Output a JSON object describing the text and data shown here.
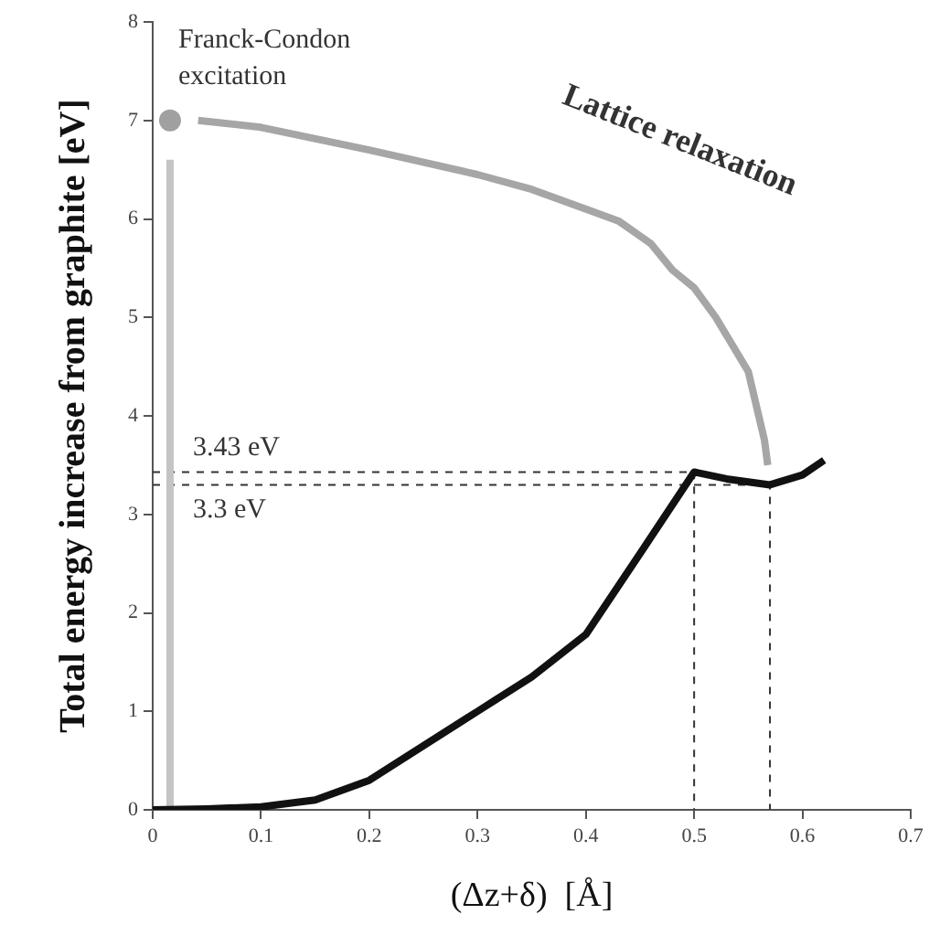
{
  "chart_data": {
    "type": "line",
    "xlabel": "(Δz+δ)  [Å]",
    "ylabel": "Total energy increase from graphite [eV]",
    "xlim": [
      0,
      0.7
    ],
    "xticks": [
      0,
      0.1,
      0.2,
      0.3,
      0.4,
      0.5,
      0.6,
      0.7
    ],
    "ylim": [
      0,
      8
    ],
    "yticks": [
      0,
      1,
      2,
      3,
      4,
      5,
      6,
      7,
      8
    ],
    "grid": false,
    "legend": false,
    "series": [
      {
        "color": "#111111",
        "line_style": "solid",
        "marker": "none",
        "x": [
          0,
          0.05,
          0.1,
          0.15,
          0.2,
          0.25,
          0.3,
          0.35,
          0.4,
          0.45,
          0.5,
          0.53,
          0.57,
          0.6,
          0.62
        ],
        "values": [
          0,
          0.01,
          0.03,
          0.1,
          0.3,
          0.65,
          1.0,
          1.35,
          1.78,
          2.6,
          3.43,
          3.36,
          3.3,
          3.4,
          3.55
        ]
      },
      {
        "color": "#a6a6a6",
        "line_style": "solid",
        "marker": "none",
        "x": [
          0.042,
          0.1,
          0.2,
          0.3,
          0.35,
          0.4,
          0.43,
          0.46,
          0.48,
          0.5,
          0.52,
          0.55,
          0.565,
          0.568
        ],
        "values": [
          7.0,
          6.93,
          6.7,
          6.45,
          6.3,
          6.1,
          5.98,
          5.75,
          5.48,
          5.3,
          5.0,
          4.45,
          3.75,
          3.5
        ]
      },
      {
        "type": "line",
        "color": "#c4c4c4",
        "line_style": "solid",
        "marker": "none",
        "x": [
          0.016,
          0.016
        ],
        "values": [
          0,
          6.6
        ]
      },
      {
        "type": "scatter",
        "color": "#a0a0a0",
        "marker": "circle",
        "x": [
          0.016
        ],
        "values": [
          7.0
        ]
      },
      {
        "type": "line",
        "color": "#333333",
        "line_style": "dashed",
        "marker": "none",
        "x": [
          0,
          0.5,
          0.5
        ],
        "values": [
          3.43,
          3.43,
          0
        ]
      },
      {
        "type": "line",
        "color": "#333333",
        "line_style": "dashed",
        "marker": "none",
        "x": [
          0,
          0.57,
          0.57
        ],
        "values": [
          3.3,
          3.3,
          0
        ]
      }
    ],
    "annotations": [
      "Franck-Condon",
      "excitation",
      "Lattice relaxation",
      "3.43 eV",
      "3.3 eV"
    ]
  }
}
